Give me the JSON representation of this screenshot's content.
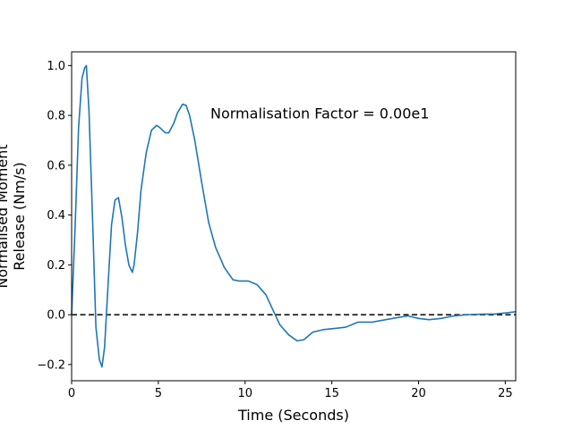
{
  "chart_data": {
    "type": "line",
    "title": "",
    "xlabel": "Time (Seconds)",
    "ylabel_lines": [
      "Normalised Moment",
      "Release (Nm/s)"
    ],
    "xlim": [
      0,
      25.6
    ],
    "ylim": [
      -0.265,
      1.055
    ],
    "x_ticks": [
      0,
      5,
      10,
      15,
      20,
      25
    ],
    "y_ticks": [
      -0.2,
      0.0,
      0.2,
      0.4,
      0.6,
      0.8,
      1.0
    ],
    "x_tick_labels": [
      "0",
      "5",
      "10",
      "15",
      "20",
      "25"
    ],
    "y_tick_labels": [
      "−0.2",
      "0.0",
      "0.2",
      "0.4",
      "0.6",
      "0.8",
      "1.0"
    ],
    "grid": false,
    "annotation": {
      "text": "Normalisation Factor = 0.00e1",
      "x": 8.0,
      "y": 0.81
    },
    "reference_line": {
      "y": 0.0,
      "style": "dashed",
      "color": "#000000"
    },
    "series": [
      {
        "color": "#1f77b4",
        "x": [
          0,
          0.2,
          0.4,
          0.6,
          0.75,
          0.85,
          1.0,
          1.2,
          1.4,
          1.6,
          1.75,
          1.9,
          2.1,
          2.3,
          2.5,
          2.7,
          2.9,
          3.1,
          3.3,
          3.5,
          3.6,
          3.8,
          4.0,
          4.3,
          4.6,
          4.9,
          5.1,
          5.4,
          5.6,
          5.9,
          6.1,
          6.4,
          6.6,
          6.8,
          7.1,
          7.5,
          7.9,
          8.3,
          8.8,
          9.3,
          9.7,
          10.2,
          10.7,
          11.2,
          11.6,
          12.0,
          12.5,
          13.0,
          13.4,
          13.9,
          14.5,
          15.2,
          15.8,
          16.5,
          17.3,
          18.1,
          18.9,
          19.4,
          20.0,
          20.6,
          21.3,
          22.0,
          22.8,
          23.6,
          24.4,
          25.0,
          25.6
        ],
        "y": [
          0.0,
          0.35,
          0.75,
          0.95,
          0.99,
          1.0,
          0.82,
          0.4,
          -0.05,
          -0.18,
          -0.21,
          -0.13,
          0.12,
          0.36,
          0.46,
          0.47,
          0.39,
          0.28,
          0.2,
          0.17,
          0.2,
          0.33,
          0.5,
          0.65,
          0.74,
          0.76,
          0.75,
          0.73,
          0.73,
          0.77,
          0.81,
          0.845,
          0.84,
          0.8,
          0.7,
          0.53,
          0.37,
          0.27,
          0.19,
          0.14,
          0.135,
          0.135,
          0.12,
          0.08,
          0.02,
          -0.04,
          -0.08,
          -0.105,
          -0.1,
          -0.07,
          -0.06,
          -0.055,
          -0.05,
          -0.03,
          -0.03,
          -0.02,
          -0.01,
          -0.005,
          -0.015,
          -0.02,
          -0.015,
          -0.005,
          0.0,
          0.002,
          0.003,
          0.007,
          0.012
        ]
      }
    ]
  }
}
